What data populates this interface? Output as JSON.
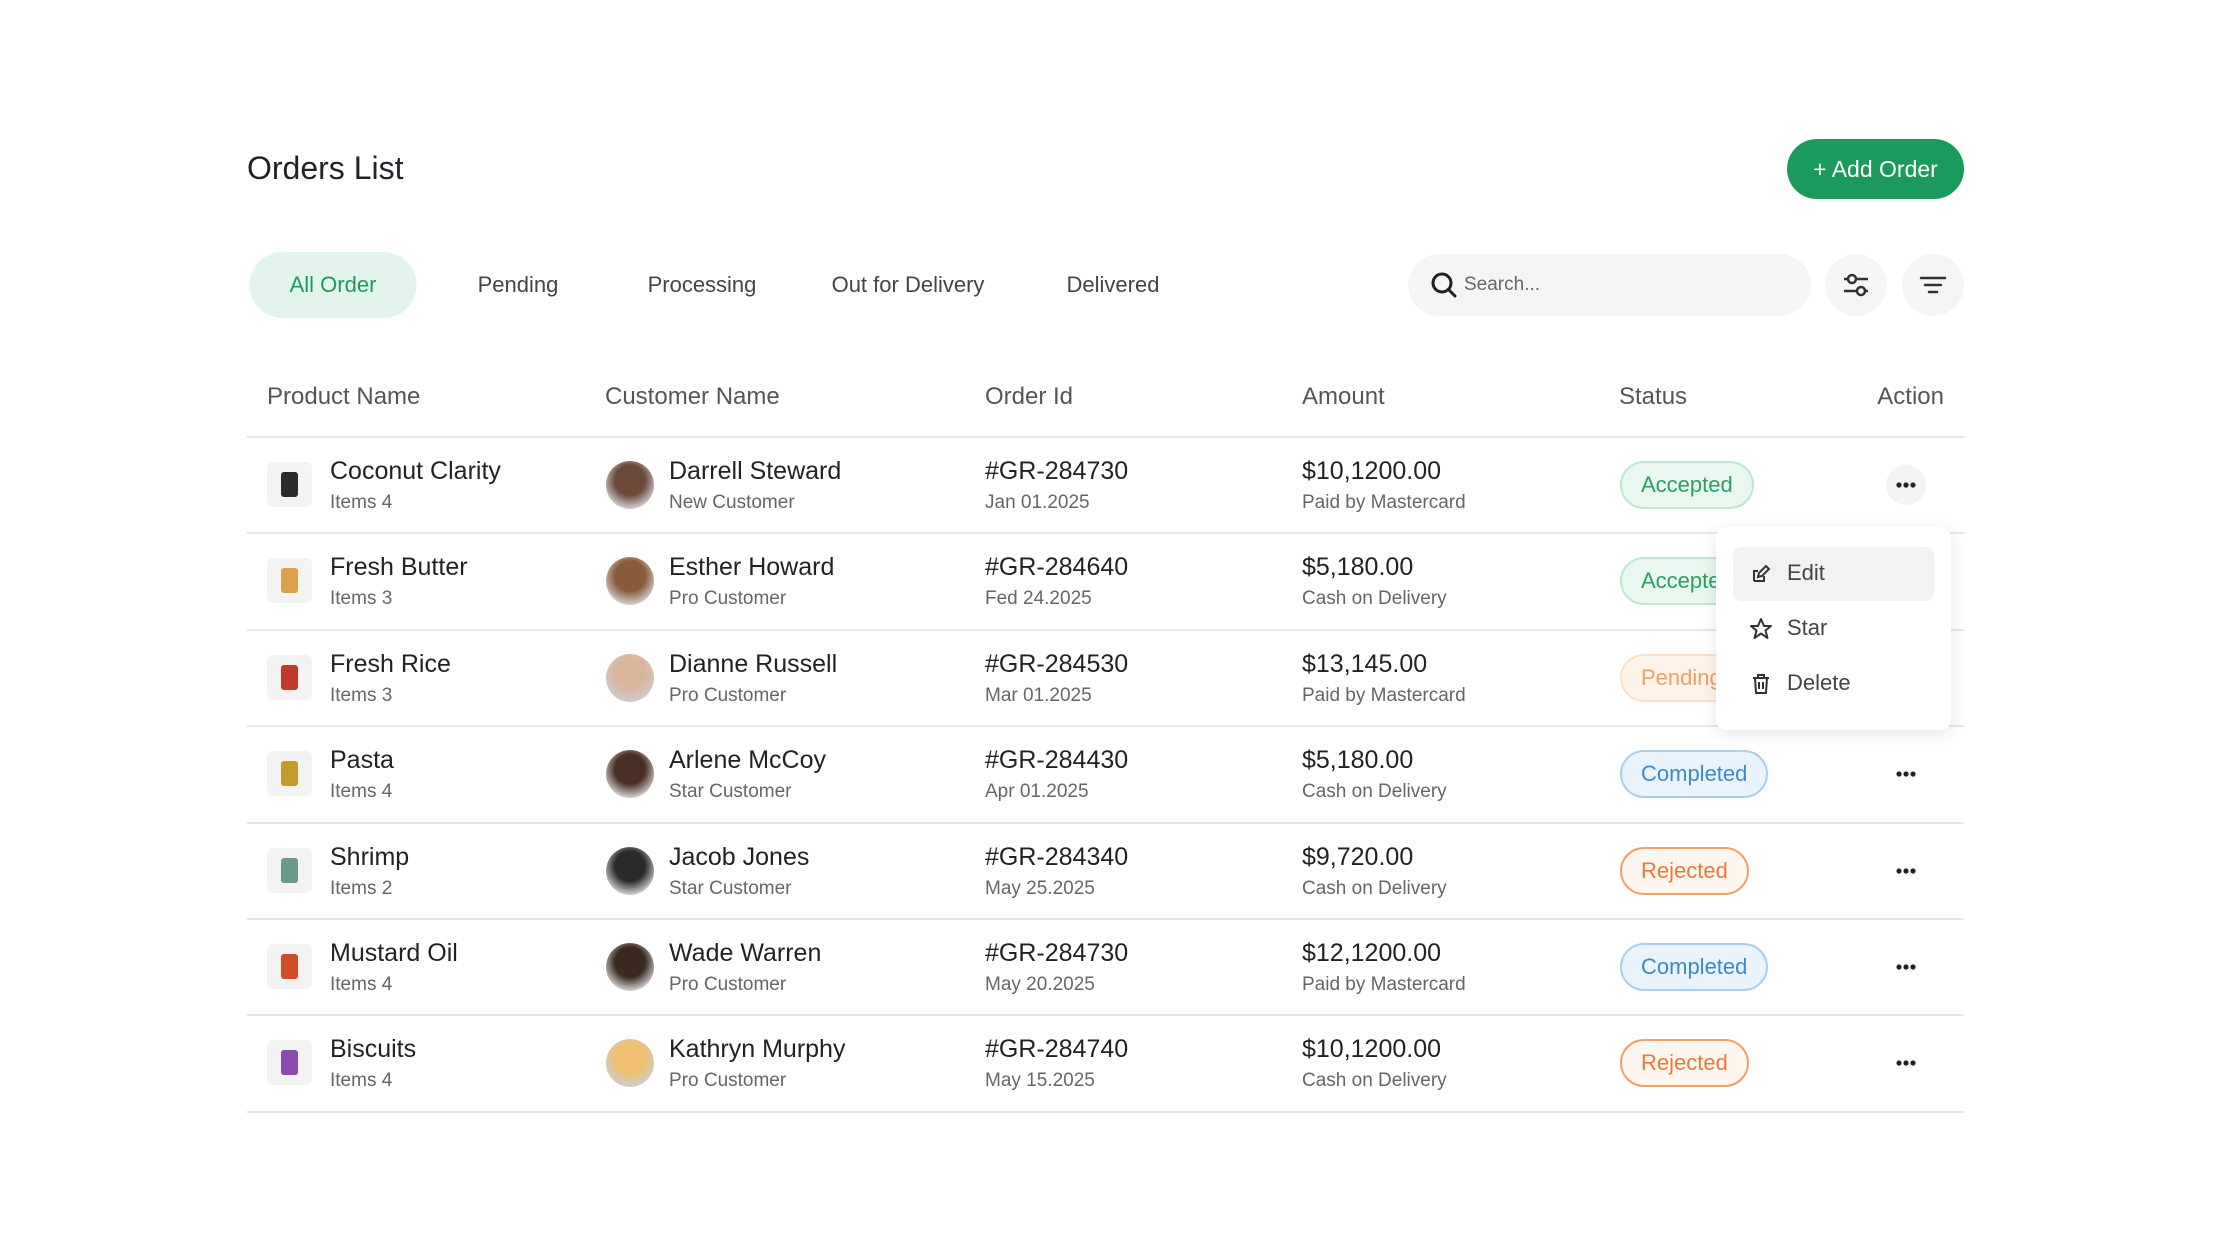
{
  "header": {
    "title": "Orders List",
    "add_button": "+ Add Order"
  },
  "tabs": [
    "All Order",
    "Pending",
    "Processing",
    "Out for Delivery",
    "Delivered"
  ],
  "search": {
    "placeholder": "Search..."
  },
  "table": {
    "columns": [
      "Product Name",
      "Customer Name",
      "Order Id",
      "Amount",
      "Status",
      "Action"
    ],
    "rows": [
      {
        "product": "Coconut Clarity",
        "items": "Items 4",
        "customer": "Darrell Steward",
        "customer_type": "New Customer",
        "order_id": "#GR-284730",
        "date": "Jan 01.2025",
        "amount": "$10,1200.00",
        "payment": "Paid by Mastercard",
        "status": "Accepted"
      },
      {
        "product": "Fresh Butter",
        "items": "Items 3",
        "customer": "Esther Howard",
        "customer_type": "Pro Customer",
        "order_id": "#GR-284640",
        "date": "Fed 24.2025",
        "amount": "$5,180.00",
        "payment": "Cash on Delivery",
        "status": "Accepted"
      },
      {
        "product": "Fresh Rice",
        "items": "Items 3",
        "customer": "Dianne Russell",
        "customer_type": "Pro Customer",
        "order_id": "#GR-284530",
        "date": "Mar 01.2025",
        "amount": "$13,145.00",
        "payment": "Paid by Mastercard",
        "status": "Pending"
      },
      {
        "product": "Pasta",
        "items": "Items 4",
        "customer": "Arlene McCoy",
        "customer_type": "Star Customer",
        "order_id": "#GR-284430",
        "date": "Apr 01.2025",
        "amount": "$5,180.00",
        "payment": "Cash on Delivery",
        "status": "Completed"
      },
      {
        "product": "Shrimp",
        "items": "Items 2",
        "customer": "Jacob Jones",
        "customer_type": "Star Customer",
        "order_id": "#GR-284340",
        "date": "May 25.2025",
        "amount": "$9,720.00",
        "payment": "Cash on Delivery",
        "status": "Rejected"
      },
      {
        "product": "Mustard Oil",
        "items": "Items 4",
        "customer": "Wade Warren",
        "customer_type": "Pro Customer",
        "order_id": "#GR-284730",
        "date": "May 20.2025",
        "amount": "$12,1200.00",
        "payment": "Paid by Mastercard",
        "status": "Completed"
      },
      {
        "product": "Biscuits",
        "items": "Items 4",
        "customer": "Kathryn Murphy",
        "customer_type": "Pro Customer",
        "order_id": "#GR-284740",
        "date": "May 15.2025",
        "amount": "$10,1200.00",
        "payment": "Cash on Delivery",
        "status": "Rejected"
      }
    ]
  },
  "menu": {
    "items": [
      "Edit",
      "Star",
      "Delete"
    ]
  }
}
